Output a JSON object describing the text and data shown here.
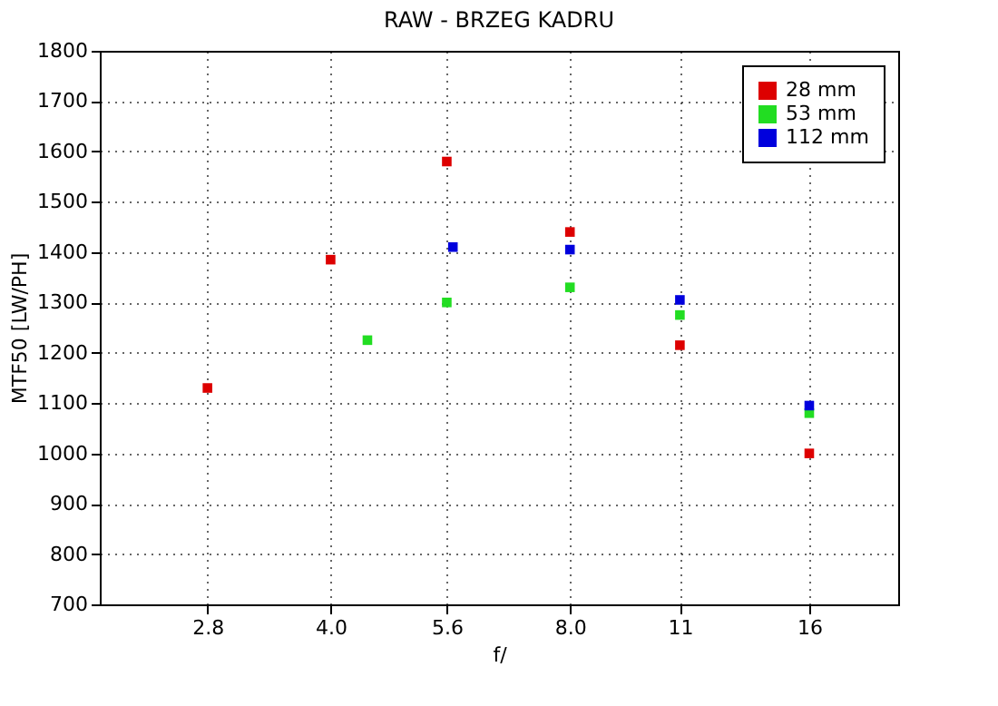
{
  "chart_data": {
    "type": "scatter",
    "title": "RAW - BRZEG KADRU",
    "xlabel": "f/",
    "ylabel": "MTF50 [LW/PH]",
    "log": "x",
    "xlim": [
      2.05,
      20.7
    ],
    "xticks": [
      2.8,
      {
        "value": 4,
        "label": "4.0"
      },
      5.6,
      {
        "value": 8,
        "label": "8.0"
      },
      11,
      16
    ],
    "ylim": [
      700,
      1800
    ],
    "yticks": [
      700,
      800,
      900,
      1000,
      1100,
      1200,
      1300,
      1400,
      1500,
      1600,
      1700,
      1800
    ],
    "grid": true,
    "legend": "top right",
    "marker": "square",
    "series": [
      {
        "name": "28 mm",
        "color": "#dd0000",
        "x": [
          2.8,
          4,
          5.6,
          8,
          11,
          16
        ],
        "values": [
          1130,
          1385,
          1580,
          1440,
          1215,
          1000
        ]
      },
      {
        "name": "53 mm",
        "color": "#22dd22",
        "x": [
          4.45,
          5.6,
          8,
          11,
          16
        ],
        "values": [
          1225,
          1300,
          1330,
          1275,
          1080
        ]
      },
      {
        "name": "112 mm",
        "color": "#0000dd",
        "x": [
          5.7,
          8,
          11,
          16
        ],
        "values": [
          1410,
          1405,
          1305,
          1095
        ]
      }
    ]
  }
}
